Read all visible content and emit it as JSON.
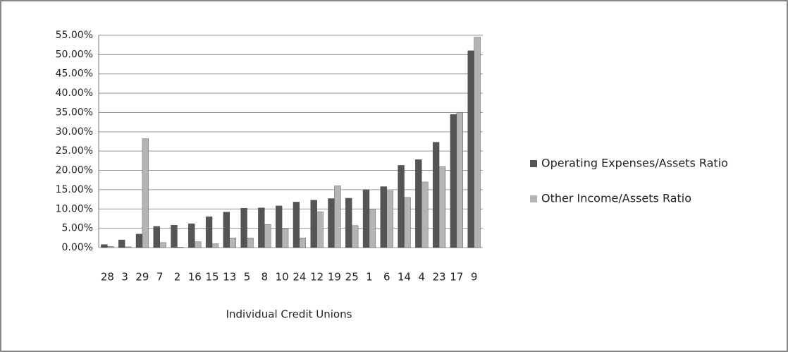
{
  "chart_data": {
    "type": "bar",
    "x_label": "Individual Credit Unions",
    "categories": [
      "28",
      "3",
      "29",
      "7",
      "2",
      "16",
      "15",
      "13",
      "5",
      "8",
      "10",
      "24",
      "12",
      "19",
      "25",
      "1",
      "6",
      "14",
      "4",
      "23",
      "17",
      "9"
    ],
    "series": [
      {
        "name": "Operating Expenses/Assets Ratio",
        "color": "#555555",
        "values": [
          0.8,
          2,
          3.5,
          5.5,
          5.8,
          6.2,
          8,
          9.2,
          10.2,
          10.3,
          10.8,
          11.8,
          12.3,
          12.7,
          12.8,
          15,
          15.8,
          21.3,
          22.8,
          27.3,
          34.5,
          51
        ]
      },
      {
        "name": "Other Income/Assets Ratio",
        "color": "#b4b4b4",
        "values": [
          0.3,
          0.2,
          28.2,
          1.3,
          0.1,
          1.5,
          1,
          2.5,
          2.5,
          6,
          5,
          2.5,
          9.3,
          16,
          5.7,
          10,
          14.7,
          13,
          17,
          21,
          35,
          54.5
        ]
      }
    ],
    "ylim": [
      0,
      55
    ],
    "yticks": [
      {
        "value": 0,
        "label": "0.00%"
      },
      {
        "value": 5,
        "label": "5.00%"
      },
      {
        "value": 10,
        "label": "10.00%"
      },
      {
        "value": 15,
        "label": "15.00%"
      },
      {
        "value": 20,
        "label": "20.00%"
      },
      {
        "value": 25,
        "label": "25.00%"
      },
      {
        "value": 30,
        "label": "30.00%"
      },
      {
        "value": 35,
        "label": "35.00%"
      },
      {
        "value": 40,
        "label": "40.00%"
      },
      {
        "value": 45,
        "label": "45.00%"
      },
      {
        "value": 50,
        "label": "50.00%"
      },
      {
        "value": 55,
        "label": "55.00%"
      }
    ],
    "grid": true,
    "legend": "right"
  }
}
